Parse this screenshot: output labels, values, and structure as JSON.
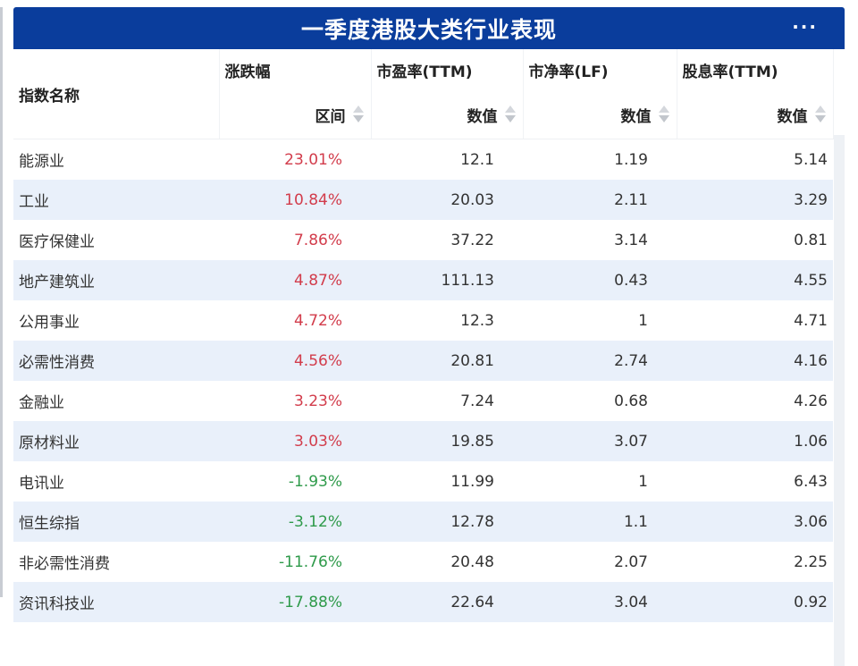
{
  "header": {
    "title": "一季度港股大类行业表现",
    "more_label": "···"
  },
  "columns": {
    "name": "指数名称",
    "groups": [
      "涨跌幅",
      "市盈率(TTM)",
      "市净率(LF)",
      "股息率(TTM)"
    ],
    "sub": [
      "区间",
      "数值",
      "数值",
      "数值"
    ]
  },
  "colors": {
    "header_bg": "#0a3d9c",
    "positive": "#d23c4b",
    "negative": "#2e9a4a",
    "stripe": "#e9f0fa"
  },
  "rows": [
    {
      "name": "能源业",
      "change": "23.01%",
      "pe": "12.1",
      "pb": "1.19",
      "dy": "5.14",
      "dir": "up"
    },
    {
      "name": "工业",
      "change": "10.84%",
      "pe": "20.03",
      "pb": "2.11",
      "dy": "3.29",
      "dir": "up"
    },
    {
      "name": "医疗保健业",
      "change": "7.86%",
      "pe": "37.22",
      "pb": "3.14",
      "dy": "0.81",
      "dir": "up"
    },
    {
      "name": "地产建筑业",
      "change": "4.87%",
      "pe": "111.13",
      "pb": "0.43",
      "dy": "4.55",
      "dir": "up"
    },
    {
      "name": "公用事业",
      "change": "4.72%",
      "pe": "12.3",
      "pb": "1",
      "dy": "4.71",
      "dir": "up"
    },
    {
      "name": "必需性消费",
      "change": "4.56%",
      "pe": "20.81",
      "pb": "2.74",
      "dy": "4.16",
      "dir": "up"
    },
    {
      "name": "金融业",
      "change": "3.23%",
      "pe": "7.24",
      "pb": "0.68",
      "dy": "4.26",
      "dir": "up"
    },
    {
      "name": "原材料业",
      "change": "3.03%",
      "pe": "19.85",
      "pb": "3.07",
      "dy": "1.06",
      "dir": "up"
    },
    {
      "name": "电讯业",
      "change": "-1.93%",
      "pe": "11.99",
      "pb": "1",
      "dy": "6.43",
      "dir": "down"
    },
    {
      "name": "恒生综指",
      "change": "-3.12%",
      "pe": "12.78",
      "pb": "1.1",
      "dy": "3.06",
      "dir": "down"
    },
    {
      "name": "非必需性消费",
      "change": "-11.76%",
      "pe": "20.48",
      "pb": "2.07",
      "dy": "2.25",
      "dir": "down"
    },
    {
      "name": "资讯科技业",
      "change": "-17.88%",
      "pe": "22.64",
      "pb": "3.04",
      "dy": "0.92",
      "dir": "down"
    }
  ]
}
